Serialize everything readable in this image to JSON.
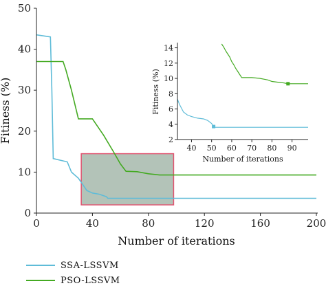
{
  "chart_data": [
    {
      "type": "line",
      "xlabel": "Number of iterations",
      "ylabel": "Fitiness (%)",
      "xlim": [
        0,
        200
      ],
      "ylim": [
        0,
        50
      ],
      "xticks": [
        0,
        40,
        80,
        120,
        160,
        200
      ],
      "yticks": [
        0,
        10,
        20,
        30,
        40,
        50
      ],
      "zoom_region": {
        "x": [
          32,
          98
        ],
        "y": [
          2,
          14.5
        ]
      },
      "series": [
        {
          "name": "SSA-LSSVM",
          "color": "#5fbcd8",
          "x": [
            0,
            10,
            11,
            12,
            22,
            25,
            30,
            33,
            36,
            40,
            45,
            50,
            51,
            60,
            100,
            150,
            200
          ],
          "y": [
            43.5,
            43,
            30,
            13.3,
            12.5,
            10,
            8.5,
            7,
            5.5,
            4.9,
            4.6,
            4.0,
            3.6,
            3.6,
            3.6,
            3.6,
            3.6
          ]
        },
        {
          "name": "PSO-LSSVM",
          "color": "#44aa22",
          "x": [
            0,
            19,
            21,
            25,
            30,
            40,
            42,
            48,
            55,
            60,
            64,
            72,
            80,
            88,
            90,
            100,
            150,
            200
          ],
          "y": [
            37,
            37,
            35,
            30,
            23,
            23,
            22,
            19,
            15,
            12,
            10.2,
            10.1,
            9.6,
            9.3,
            9.3,
            9.3,
            9.3,
            9.3
          ]
        }
      ]
    },
    {
      "type": "line",
      "xlabel": "Number of iterations",
      "ylabel": "Fitiness (%)",
      "xlim": [
        33,
        98
      ],
      "ylim": [
        2,
        14.5
      ],
      "xticks": [
        40,
        50,
        60,
        70,
        80,
        90
      ],
      "yticks": [
        2,
        4,
        6,
        8,
        10,
        12,
        14
      ],
      "series": [
        {
          "name": "SSA-LSSVM",
          "color": "#5fbcd8",
          "x": [
            33,
            34,
            36,
            38,
            40,
            43,
            46,
            48,
            50,
            51,
            60,
            70,
            80,
            90,
            98
          ],
          "y": [
            7.3,
            6.6,
            5.6,
            5.2,
            5.0,
            4.8,
            4.7,
            4.5,
            4.1,
            3.6,
            3.6,
            3.6,
            3.6,
            3.6,
            3.6
          ],
          "marker": {
            "x": 51,
            "y": 3.7
          }
        },
        {
          "name": "PSO-LSSVM",
          "color": "#44aa22",
          "x": [
            55,
            56,
            57,
            58,
            59,
            60,
            61,
            62,
            63,
            64,
            65,
            70,
            74,
            76,
            78,
            80,
            83,
            86,
            88,
            90,
            98
          ],
          "y": [
            14.5,
            14.1,
            13.6,
            13.2,
            12.8,
            12.2,
            11.8,
            11.3,
            10.9,
            10.5,
            10.1,
            10.1,
            10.0,
            9.9,
            9.8,
            9.6,
            9.5,
            9.4,
            9.3,
            9.3,
            9.3
          ],
          "marker": {
            "x": 88,
            "y": 9.3
          }
        }
      ]
    }
  ],
  "legend": [
    {
      "label": "SSA-LSSVM",
      "color": "#5fbcd8"
    },
    {
      "label": "PSO-LSSVM",
      "color": "#44aa22"
    }
  ]
}
